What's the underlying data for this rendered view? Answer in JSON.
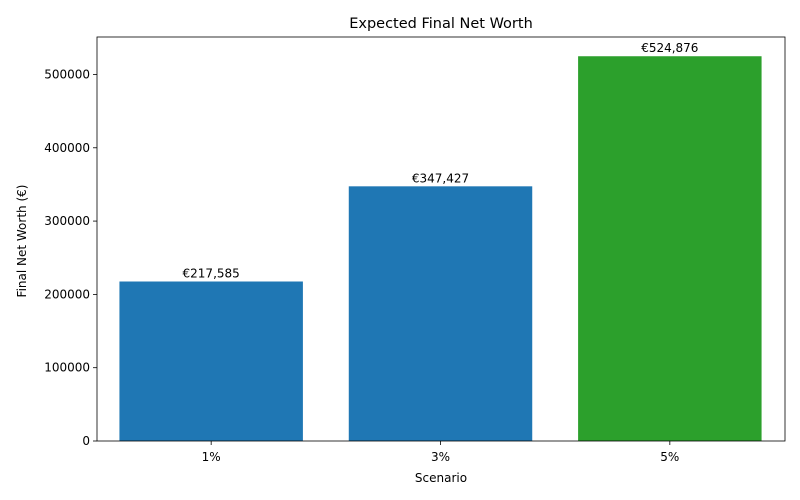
{
  "chart_data": {
    "type": "bar",
    "title": "Expected Final Net Worth",
    "xlabel": "Scenario",
    "ylabel": "Final Net Worth (€)",
    "categories": [
      "1%",
      "3%",
      "5%"
    ],
    "values": [
      217585,
      347427,
      524876
    ],
    "value_labels": [
      "€217,585",
      "€347,427",
      "€524,876"
    ],
    "bar_colors": [
      "#1f77b4",
      "#1f77b4",
      "#2ca02c"
    ],
    "yticks": [
      0,
      100000,
      200000,
      300000,
      400000,
      500000
    ],
    "ytick_labels": [
      "0",
      "100000",
      "200000",
      "300000",
      "400000",
      "500000"
    ],
    "ylim": [
      0,
      551120
    ],
    "grid": false,
    "legend": false
  }
}
